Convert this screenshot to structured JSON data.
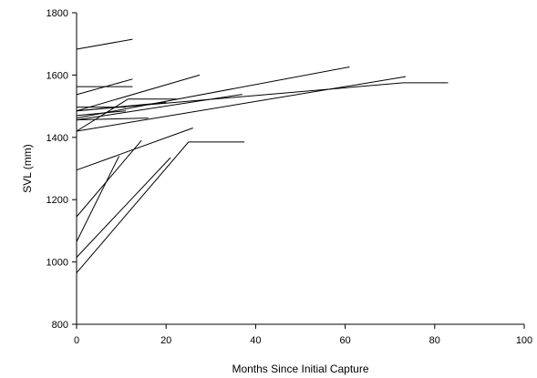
{
  "chart_data": {
    "type": "line",
    "title": "",
    "xlabel": "Months Since Initial Capture",
    "ylabel": "SVL (mm)",
    "xlim": [
      0,
      100
    ],
    "ylim": [
      800,
      1800
    ],
    "x_ticks": [
      0,
      20,
      40,
      60,
      80,
      100
    ],
    "y_ticks": [
      800,
      1000,
      1200,
      1400,
      1600,
      1800
    ],
    "grid": false,
    "legend": "none",
    "line_color": "#000000",
    "series": [
      {
        "x": [
          0,
          12.5
        ],
        "y": [
          1683,
          1715
        ]
      },
      {
        "x": [
          0,
          12.5
        ],
        "y": [
          1563,
          1563
        ]
      },
      {
        "x": [
          0,
          12.5
        ],
        "y": [
          1537,
          1587
        ]
      },
      {
        "x": [
          0,
          27.5
        ],
        "y": [
          1485,
          1600
        ]
      },
      {
        "x": [
          0,
          61
        ],
        "y": [
          1462,
          1626
        ]
      },
      {
        "x": [
          0,
          73.5
        ],
        "y": [
          1420,
          1595
        ]
      },
      {
        "x": [
          0,
          11.5,
          22.5
        ],
        "y": [
          1420,
          1523,
          1523
        ]
      },
      {
        "x": [
          0,
          37
        ],
        "y": [
          1456,
          1538
        ]
      },
      {
        "x": [
          0,
          20
        ],
        "y": [
          1485,
          1512
        ]
      },
      {
        "x": [
          0,
          11
        ],
        "y": [
          1497,
          1497
        ]
      },
      {
        "x": [
          0,
          16
        ],
        "y": [
          1456,
          1462
        ]
      },
      {
        "x": [
          0,
          11
        ],
        "y": [
          1470,
          1485
        ]
      },
      {
        "x": [
          0,
          73,
          83
        ],
        "y": [
          1485,
          1575,
          1575
        ]
      },
      {
        "x": [
          0,
          26
        ],
        "y": [
          1295,
          1430
        ]
      },
      {
        "x": [
          0,
          14.5
        ],
        "y": [
          1145,
          1390
        ]
      },
      {
        "x": [
          0,
          9.5
        ],
        "y": [
          1065,
          1340
        ]
      },
      {
        "x": [
          0,
          21
        ],
        "y": [
          1015,
          1335
        ]
      },
      {
        "x": [
          0,
          25,
          37.5
        ],
        "y": [
          965,
          1385,
          1385
        ]
      }
    ]
  }
}
